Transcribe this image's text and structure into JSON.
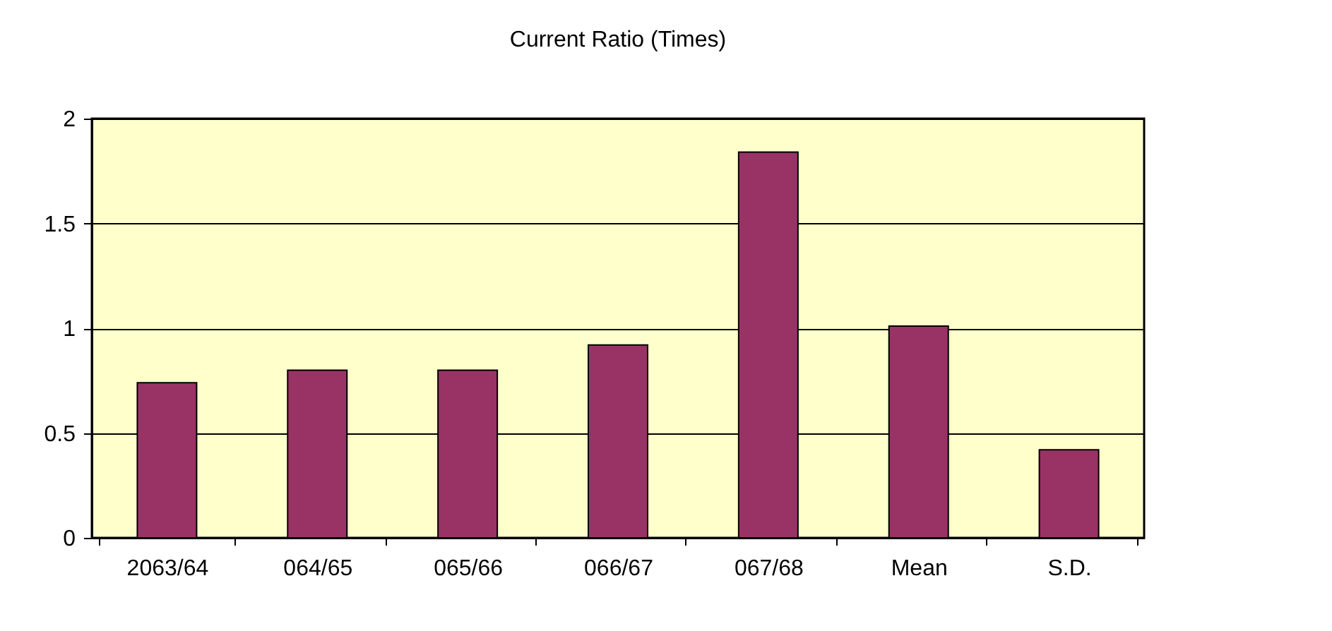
{
  "chart_data": {
    "type": "bar",
    "title": "Current Ratio (Times)",
    "categories": [
      "2063/64",
      "064/65",
      "065/66",
      "066/67",
      "067/68",
      "Mean",
      "S.D."
    ],
    "series": [
      {
        "color": "#993366",
        "values": [
          0.74,
          0.8,
          0.8,
          0.92,
          1.84,
          1.01,
          0.42
        ]
      }
    ],
    "ylim": [
      0,
      2
    ],
    "yticks": [
      0,
      0.5,
      1,
      1.5,
      2
    ],
    "grid": "y"
  }
}
